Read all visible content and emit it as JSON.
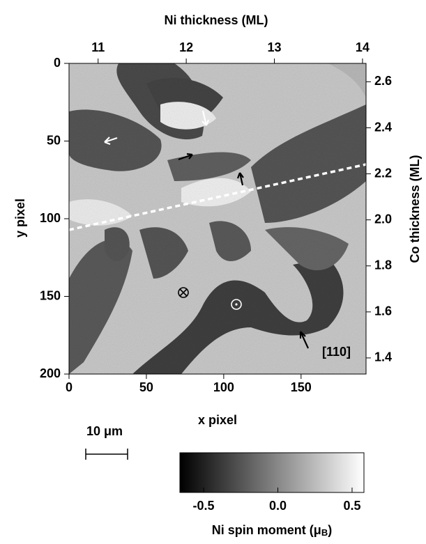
{
  "chart_data": {
    "type": "image",
    "top_label": "Ni thickness  (ML)",
    "x_label": "x pixel",
    "y_label": "y pixel",
    "right_label": "Co thickness  (ML)",
    "xlim": [
      0,
      192
    ],
    "xticks": [
      0,
      50,
      100,
      150
    ],
    "ylim": [
      0,
      200
    ],
    "yticks": [
      0,
      50,
      100,
      150,
      200
    ],
    "x2lim": [
      10.67,
      14.04
    ],
    "x2ticks": [
      11,
      12,
      13,
      14
    ],
    "y2lim": [
      1.33,
      2.68
    ],
    "y2ticks": [
      1.4,
      1.6,
      1.8,
      {
        "value": 2,
        "label": "2.0"
      },
      2.2,
      2.4,
      2.6
    ],
    "colorbar": {
      "label": [
        "Ni spin moment  (μ",
        "B",
        ")"
      ],
      "lim": [
        -0.66,
        0.58
      ],
      "ticks": [
        -0.5,
        {
          "value": 0,
          "label": "0.0"
        },
        0.5
      ],
      "colors": [
        "#000000",
        "#ffffff"
      ]
    },
    "scale_bar": "10 μm",
    "annotations": [
      "[110]"
    ]
  }
}
